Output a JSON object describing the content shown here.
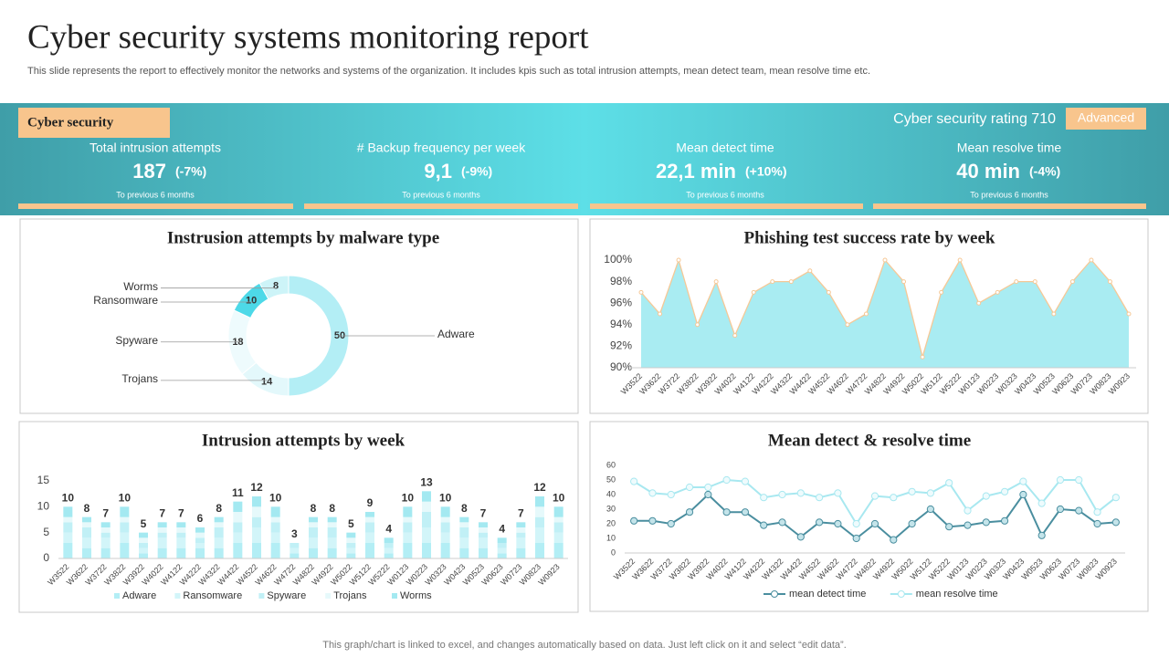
{
  "header": {
    "title": "Cyber security systems monitoring report",
    "subtitle": "This slide represents the report to effectively  monitor the networks and systems of the organization. It includes kpis such as total intrusion attempts, mean detect team, mean resolve time etc."
  },
  "banner": {
    "label": "Cyber security",
    "rating": "Cyber security rating 710",
    "level": "Advanced"
  },
  "kpis": [
    {
      "title": "Total intrusion attempts",
      "value": "187",
      "change": "(-7%)",
      "note": "To previous 6 months"
    },
    {
      "title": "# Backup frequency per week",
      "value": "9,1",
      "change": "(-9%)",
      "note": "To previous 6 months"
    },
    {
      "title": "Mean detect time",
      "value": "22,1 min",
      "change": "(+10%)",
      "note": "To previous 6 months"
    },
    {
      "title": "Mean resolve time",
      "value": "40 min",
      "change": "(-4%)",
      "note": "To previous 6 months"
    }
  ],
  "chart_data": [
    {
      "type": "pie",
      "title": "Instrusion attempts by malware type",
      "donut": true,
      "categories": [
        "Adware",
        "Trojans",
        "Spyware",
        "Ransomware",
        "Worms"
      ],
      "values": [
        50,
        14,
        18,
        10,
        8
      ],
      "colors": [
        "#b3eef5",
        "#e3f8fb",
        "#eefbfd",
        "#4dd9e8",
        "#cdf4f8"
      ]
    },
    {
      "type": "area",
      "title": "Phishing test success rate by week",
      "categories": [
        "W3522",
        "W3622",
        "W3722",
        "W3822",
        "W3922",
        "W4022",
        "W4122",
        "W4222",
        "W4322",
        "W4422",
        "W4522",
        "W4622",
        "W4722",
        "W4822",
        "W4922",
        "W5022",
        "W5122",
        "W5222",
        "W0123",
        "W0223",
        "W0323",
        "W0423",
        "W0523",
        "W0623",
        "W0723",
        "W0823",
        "W0923"
      ],
      "values": [
        97,
        95,
        100,
        94,
        98,
        93,
        97,
        98,
        98,
        99,
        97,
        94,
        95,
        100,
        98,
        91,
        97,
        100,
        96,
        97,
        98,
        98,
        95,
        98,
        100,
        98,
        95
      ],
      "color": "#a9ecf2",
      "line_color": "#f6c896",
      "ylim": [
        90,
        100
      ],
      "yticks": [
        {
          "value": 90,
          "label": "90%"
        },
        {
          "value": 92,
          "label": "92%"
        },
        {
          "value": 94,
          "label": "94%"
        },
        {
          "value": 96,
          "label": "96%"
        },
        {
          "value": 98,
          "label": "98%"
        },
        {
          "value": 100,
          "label": "100%"
        }
      ]
    },
    {
      "type": "bar",
      "stacked": true,
      "title": "Intrusion attempts by week",
      "categories": [
        "W3522",
        "W3622",
        "W3722",
        "W3822",
        "W3922",
        "W4022",
        "W4122",
        "W4222",
        "W4322",
        "W4422",
        "W4522",
        "W4622",
        "W4722",
        "W4822",
        "W4922",
        "W5022",
        "W5122",
        "W5222",
        "W0123",
        "W0223",
        "W0323",
        "W0423",
        "W0523",
        "W0623",
        "W0723",
        "W0823",
        "W0923"
      ],
      "series": [
        {
          "name": "Adware",
          "color": "#b3eef5",
          "values": [
            3,
            2,
            2,
            3,
            1,
            2,
            2,
            2,
            2,
            3,
            3,
            3,
            1,
            2,
            2,
            1,
            3,
            1,
            3,
            3,
            3,
            2,
            2,
            1,
            2,
            3,
            3
          ]
        },
        {
          "name": "Ransomware",
          "color": "#d2f5f9",
          "values": [
            2,
            2,
            2,
            2,
            1,
            2,
            2,
            1,
            2,
            2,
            3,
            2,
            1,
            2,
            2,
            1,
            2,
            1,
            2,
            3,
            2,
            2,
            2,
            1,
            2,
            3,
            2
          ]
        },
        {
          "name": "Spyware",
          "color": "#c1f0f6",
          "values": [
            2,
            2,
            1,
            2,
            1,
            1,
            1,
            1,
            2,
            2,
            2,
            2,
            1,
            2,
            2,
            1,
            2,
            1,
            2,
            3,
            2,
            2,
            1,
            1,
            1,
            2,
            2
          ]
        },
        {
          "name": "Trojans",
          "color": "#e6f9fb",
          "values": [
            1,
            1,
            1,
            1,
            1,
            1,
            1,
            1,
            1,
            2,
            2,
            1,
            0,
            1,
            1,
            1,
            1,
            0,
            1,
            2,
            1,
            1,
            1,
            0,
            1,
            2,
            1
          ]
        },
        {
          "name": "Worms",
          "color": "#a4e9f1",
          "values": [
            2,
            1,
            1,
            2,
            1,
            1,
            1,
            1,
            1,
            2,
            2,
            2,
            0,
            1,
            1,
            1,
            1,
            1,
            2,
            2,
            2,
            1,
            1,
            1,
            1,
            2,
            2
          ]
        }
      ],
      "totals": [
        10,
        8,
        7,
        10,
        5,
        7,
        7,
        6,
        8,
        11,
        12,
        10,
        3,
        8,
        8,
        5,
        9,
        4,
        10,
        13,
        10,
        8,
        7,
        4,
        7,
        12,
        10
      ],
      "ylim": [
        0,
        15
      ],
      "yticks": [
        0,
        5,
        10,
        15
      ],
      "legend": "bottom"
    },
    {
      "type": "line",
      "title": "Mean detect & resolve time",
      "categories": [
        "W3522",
        "W3622",
        "W3722",
        "W3822",
        "W3922",
        "W4022",
        "W4122",
        "W4222",
        "W4322",
        "W4422",
        "W4522",
        "W4622",
        "W4722",
        "W4822",
        "W4922",
        "W5022",
        "W5122",
        "W5222",
        "W0123",
        "W0223",
        "W0323",
        "W0423",
        "W0523",
        "W0623",
        "W0723",
        "W0823",
        "W0923"
      ],
      "series": [
        {
          "name": "mean detect time",
          "color": "#4a8e9f",
          "values": [
            22,
            22,
            20,
            28,
            40,
            28,
            28,
            19,
            21,
            11,
            21,
            20,
            10,
            20,
            9,
            20,
            30,
            18,
            19,
            21,
            22,
            40,
            12,
            30,
            29,
            20,
            21
          ]
        },
        {
          "name": "mean resolve time",
          "color": "#a8e8f0",
          "values": [
            49,
            41,
            40,
            45,
            45,
            50,
            49,
            38,
            40,
            41,
            38,
            41,
            20,
            39,
            38,
            42,
            41,
            48,
            29,
            39,
            42,
            49,
            34,
            50,
            50,
            28,
            38
          ]
        }
      ],
      "ylim": [
        0,
        60
      ],
      "yticks": [
        0,
        10,
        20,
        30,
        40,
        50,
        60
      ],
      "legend": "bottom"
    }
  ],
  "footer": "This graph/chart is linked to excel,  and changes automatically based on data. Just left click on it and select “edit data”."
}
